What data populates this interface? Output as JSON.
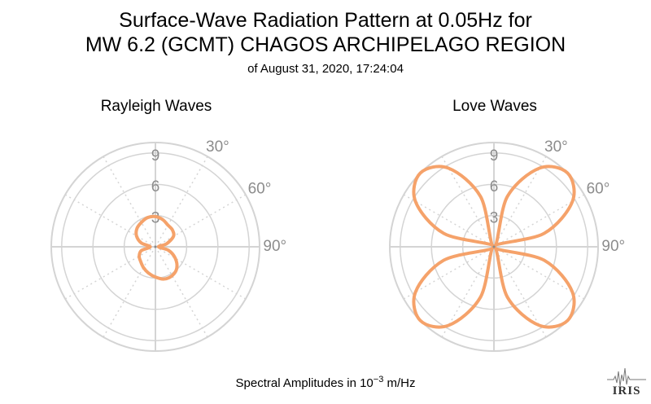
{
  "title_line1": "Surface-Wave Radiation Pattern at 0.05Hz for",
  "title_line2": "MW 6.2 (GCMT) CHAGOS ARCHIPELAGO REGION",
  "subtitle": "of August 31, 2020, 17:24:04",
  "footer": {
    "prefix": "Spectral Amplitudes in ",
    "base": "10",
    "exponent": "−3",
    "unit": " m/Hz"
  },
  "logo_text": "IRIS",
  "colors": {
    "pattern": "#f5a26a",
    "grid": "#d4d4d4",
    "labels": "#8c8c8c"
  },
  "chart_data": [
    {
      "type": "polar-line",
      "title": "Rayleigh Waves",
      "radial_ticks": [
        3,
        6,
        9
      ],
      "radial_max": 10,
      "angle_ticks": [
        "30°",
        "60°",
        "90°"
      ],
      "azimuth_deg": [
        0,
        15,
        30,
        45,
        60,
        75,
        90,
        105,
        120,
        135,
        150,
        165,
        180,
        195,
        210,
        225,
        240,
        255,
        270,
        285,
        300,
        315,
        330,
        345
      ],
      "amplitude": [
        2.9,
        2.7,
        2.4,
        2.3,
        2.0,
        1.1,
        0.3,
        1.3,
        2.2,
        2.9,
        3.2,
        3.2,
        2.9,
        2.6,
        2.3,
        2.0,
        1.8,
        1.4,
        0.5,
        1.4,
        2.1,
        2.5,
        2.7,
        2.9
      ]
    },
    {
      "type": "polar-line",
      "title": "Love Waves",
      "radial_ticks": [
        3,
        6,
        9
      ],
      "radial_max": 10,
      "angle_ticks": [
        "30°",
        "60°",
        "90°"
      ],
      "azimuth_deg": [
        0,
        15,
        30,
        45,
        60,
        75,
        90,
        105,
        120,
        135,
        150,
        165,
        180,
        195,
        210,
        225,
        240,
        255,
        270,
        285,
        300,
        315,
        330,
        345
      ],
      "amplitude": [
        0,
        5.0,
        8.7,
        10.0,
        8.7,
        5.0,
        0,
        5.0,
        8.7,
        10.0,
        8.7,
        5.0,
        0,
        5.0,
        8.7,
        10.0,
        8.7,
        5.0,
        0,
        5.0,
        8.7,
        10.0,
        8.7,
        5.0
      ]
    }
  ]
}
